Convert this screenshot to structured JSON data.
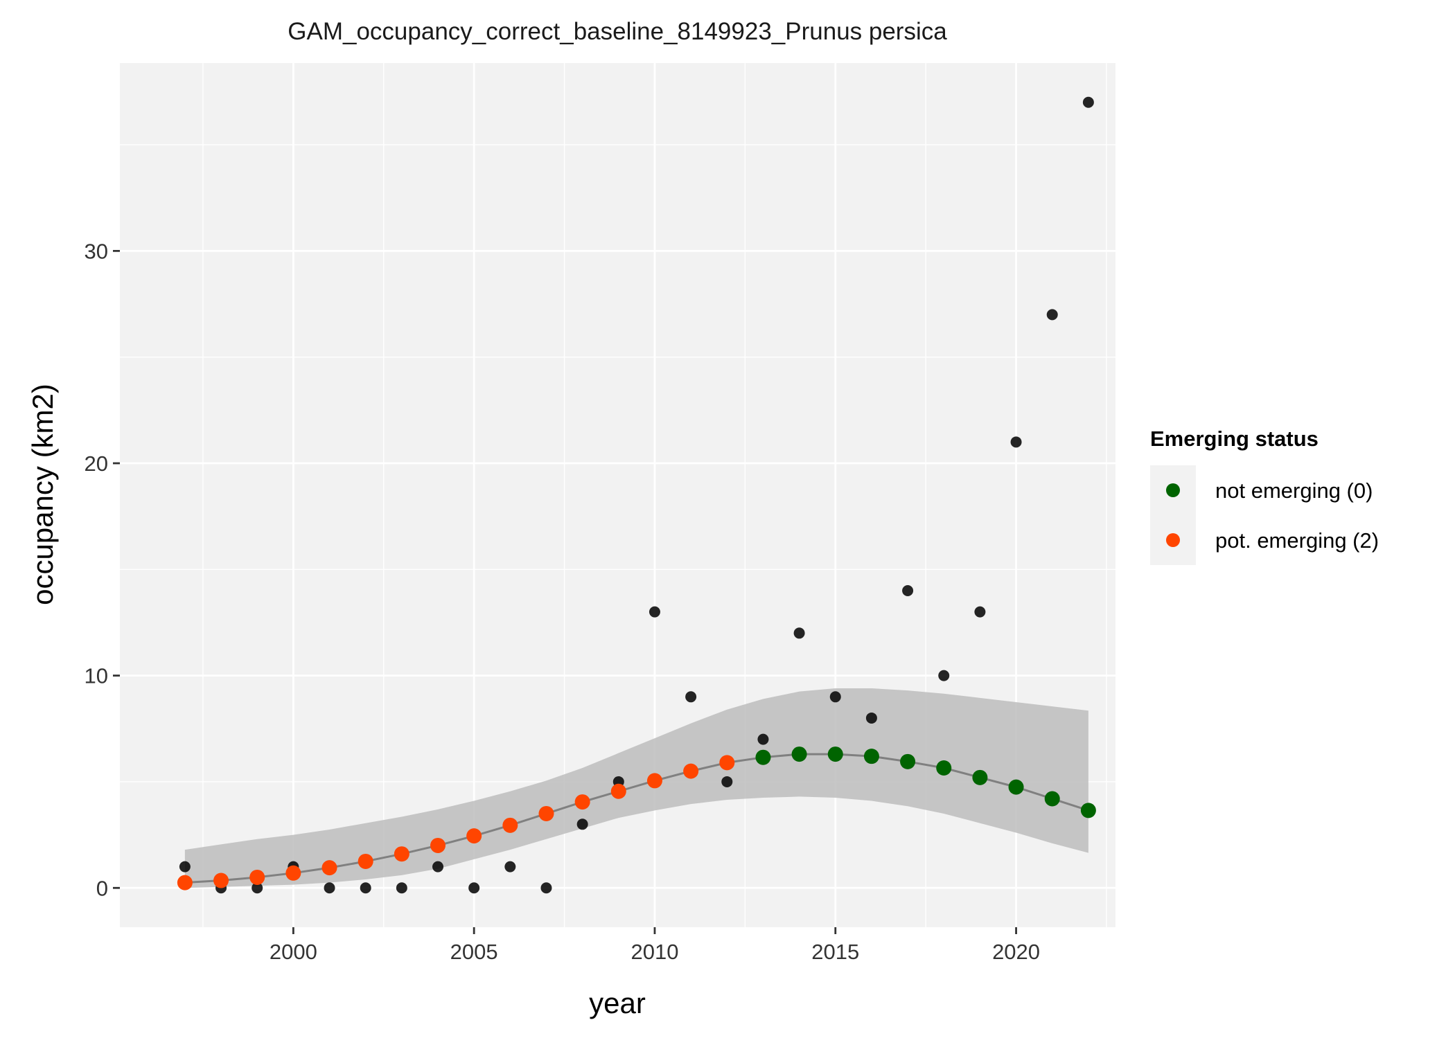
{
  "chart_data": {
    "type": "scatter",
    "title": "GAM_occupancy_correct_baseline_8149923_Prunus persica",
    "xlabel": "year",
    "ylabel": "occupancy (km2)",
    "xlim": [
      1995.2,
      2022.75
    ],
    "ylim": [
      -1.85,
      38.85
    ],
    "x_ticks": [
      2000,
      2005,
      2010,
      2015,
      2020
    ],
    "y_ticks": [
      0,
      10,
      20,
      30
    ],
    "x_tick_labels": [
      "2000",
      "2005",
      "2010",
      "2015",
      "2020"
    ],
    "y_tick_labels": [
      "0",
      "10",
      "20",
      "30"
    ],
    "grid": true,
    "legend": {
      "title": "Emerging status",
      "placement": "right",
      "entries": [
        {
          "label": "not emerging (0)",
          "color": "#006400"
        },
        {
          "label": "pot. emerging (2)",
          "color": "#ff4500"
        }
      ]
    },
    "colors": {
      "panel": "#f2f2f2",
      "grid": "#ffffff",
      "observed": "#000000",
      "band": "#bdbdbd",
      "line": "#808080",
      "not_emerging": "#006400",
      "pot_emerging": "#ff4500"
    },
    "observed": {
      "x": [
        1997,
        1998,
        1999,
        2000,
        2001,
        2002,
        2003,
        2004,
        2005,
        2006,
        2007,
        2008,
        2009,
        2010,
        2011,
        2012,
        2013,
        2014,
        2015,
        2016,
        2017,
        2018,
        2019,
        2020,
        2021,
        2022
      ],
      "y": [
        1,
        0,
        0,
        1,
        0,
        0,
        0,
        1,
        0,
        1,
        0,
        3,
        5,
        13,
        9,
        5,
        7,
        12,
        9,
        8,
        14,
        10,
        13,
        21,
        27,
        37
      ]
    },
    "fitted": {
      "x": [
        1997,
        1998,
        1999,
        2000,
        2001,
        2002,
        2003,
        2004,
        2005,
        2006,
        2007,
        2008,
        2009,
        2010,
        2011,
        2012,
        2013,
        2014,
        2015,
        2016,
        2017,
        2018,
        2019,
        2020,
        2021,
        2022
      ],
      "y": [
        0.25,
        0.35,
        0.5,
        0.7,
        0.95,
        1.25,
        1.6,
        2.0,
        2.45,
        2.95,
        3.5,
        4.05,
        4.55,
        5.05,
        5.5,
        5.9,
        6.15,
        6.3,
        6.3,
        6.2,
        5.95,
        5.65,
        5.2,
        4.75,
        4.2,
        3.65
      ],
      "lower": [
        0.0,
        0.05,
        0.1,
        0.15,
        0.25,
        0.4,
        0.6,
        0.9,
        1.35,
        1.8,
        2.3,
        2.8,
        3.3,
        3.65,
        3.95,
        4.15,
        4.25,
        4.3,
        4.25,
        4.1,
        3.85,
        3.5,
        3.05,
        2.6,
        2.1,
        1.65
      ],
      "upper": [
        1.8,
        2.05,
        2.3,
        2.5,
        2.75,
        3.05,
        3.35,
        3.7,
        4.1,
        4.55,
        5.05,
        5.65,
        6.35,
        7.05,
        7.75,
        8.4,
        8.9,
        9.25,
        9.4,
        9.4,
        9.3,
        9.15,
        8.95,
        8.75,
        8.55,
        8.35
      ],
      "status": [
        2,
        2,
        2,
        2,
        2,
        2,
        2,
        2,
        2,
        2,
        2,
        2,
        2,
        2,
        2,
        2,
        0,
        0,
        0,
        0,
        0,
        0,
        0,
        0,
        0,
        0
      ]
    }
  }
}
